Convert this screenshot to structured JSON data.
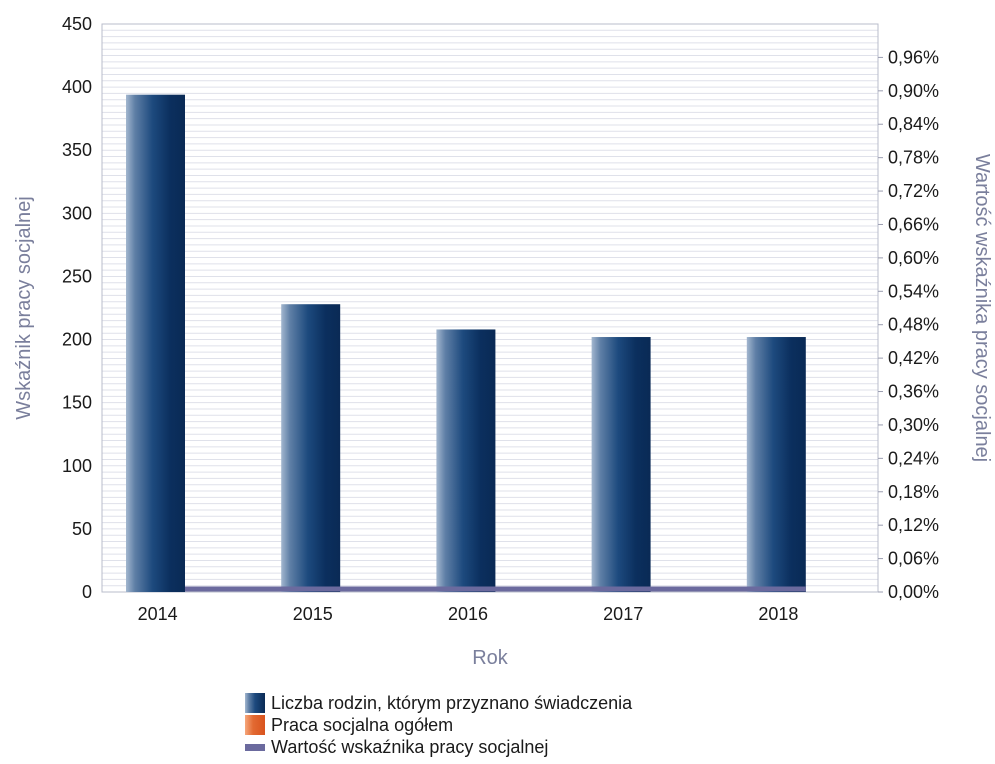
{
  "chart_data": {
    "type": "bar",
    "categories": [
      "2014",
      "2015",
      "2016",
      "2017",
      "2018"
    ],
    "series": [
      {
        "name": "Liczba rodzin, którym przyznano świadczenia",
        "kind": "bar",
        "axis": "left",
        "color": "#0d3768",
        "values": [
          394,
          228,
          208,
          202,
          202
        ]
      },
      {
        "name": "Praca socjalna ogółem",
        "kind": "bar",
        "axis": "left",
        "color": "#d9531e",
        "values": [
          0,
          0,
          0,
          0,
          0
        ]
      },
      {
        "name": "Wartość wskaźnika pracy socjalnej",
        "kind": "line",
        "axis": "right",
        "color": "#6b6a9e",
        "values": [
          0.0,
          0.0,
          0.0,
          0.0,
          0.0
        ]
      }
    ],
    "xlabel": "Rok",
    "ylabel": "Wskaźnik pracy socjalnej",
    "y2label": "Wartość wskaźnika pracy socjalnej",
    "ylim": [
      0,
      450
    ],
    "yticks": [
      "0",
      "50",
      "100",
      "150",
      "200",
      "250",
      "300",
      "350",
      "400",
      "450"
    ],
    "y2lim": [
      0,
      1.02
    ],
    "y2ticks": [
      "0,00%",
      "0,06%",
      "0,12%",
      "0,18%",
      "0,24%",
      "0,30%",
      "0,36%",
      "0,42%",
      "0,48%",
      "0,54%",
      "0,60%",
      "0,66%",
      "0,72%",
      "0,78%",
      "0,84%",
      "0,90%",
      "0,96%"
    ],
    "grid": true,
    "legend_position": "bottom"
  }
}
